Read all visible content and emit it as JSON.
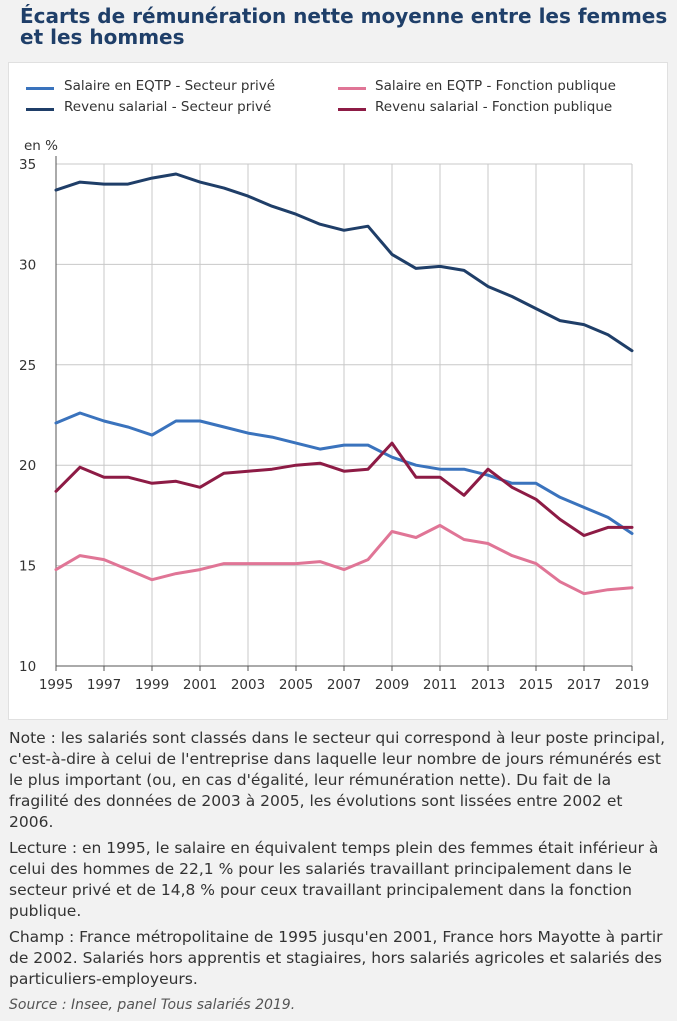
{
  "title": "Écarts de rémunération nette moyenne entre les femmes et les hommes",
  "colors": {
    "eqtp_prive": "#3a73bd",
    "eqtp_public": "#e07596",
    "revenu_prive": "#1f3e68",
    "revenu_public": "#8d1b45"
  },
  "chart_data": {
    "type": "line",
    "ylabel": "en %",
    "ylim": [
      10,
      35
    ],
    "yticks": [
      10,
      15,
      20,
      25,
      30,
      35
    ],
    "xlim": [
      1995,
      2019
    ],
    "xticks": [
      "1995",
      "1997",
      "1999",
      "2001",
      "2003",
      "2005",
      "2007",
      "2009",
      "2011",
      "2013",
      "2015",
      "2017",
      "2019"
    ],
    "grid": true,
    "legend_position": "top",
    "x": [
      1995,
      1996,
      1997,
      1998,
      1999,
      2000,
      2001,
      2002,
      2003,
      2004,
      2005,
      2006,
      2007,
      2008,
      2009,
      2010,
      2011,
      2012,
      2013,
      2014,
      2015,
      2016,
      2017,
      2018,
      2019
    ],
    "series": [
      {
        "name": "Salaire en EQTP - Secteur privé",
        "color": "#3a73bd",
        "values": [
          22.1,
          22.6,
          22.2,
          21.9,
          21.5,
          22.2,
          22.2,
          21.9,
          21.6,
          21.4,
          21.1,
          20.8,
          21.0,
          21.0,
          20.4,
          20.0,
          19.8,
          19.8,
          19.5,
          19.1,
          19.1,
          18.4,
          17.9,
          17.4,
          16.6
        ]
      },
      {
        "name": "Revenu salarial - Secteur privé",
        "color": "#1f3e68",
        "values": [
          33.7,
          34.1,
          34.0,
          34.0,
          34.3,
          34.5,
          34.1,
          33.8,
          33.4,
          32.9,
          32.5,
          32.0,
          31.7,
          31.9,
          30.5,
          29.8,
          29.9,
          29.7,
          28.9,
          28.4,
          27.8,
          27.2,
          27.0,
          26.5,
          25.7
        ]
      },
      {
        "name": "Salaire en EQTP - Fonction publique",
        "color": "#e07596",
        "values": [
          14.8,
          15.5,
          15.3,
          14.8,
          14.3,
          14.6,
          14.8,
          15.1,
          15.1,
          15.1,
          15.1,
          15.2,
          14.8,
          15.3,
          16.7,
          16.4,
          17.0,
          16.3,
          16.1,
          15.5,
          15.1,
          14.2,
          13.6,
          13.8,
          13.9
        ]
      },
      {
        "name": "Revenu salarial - Fonction publique",
        "color": "#8d1b45",
        "values": [
          18.7,
          19.9,
          19.4,
          19.4,
          19.1,
          19.2,
          18.9,
          19.6,
          19.7,
          19.8,
          20.0,
          20.1,
          19.7,
          19.8,
          21.1,
          19.4,
          19.4,
          18.5,
          19.8,
          18.9,
          18.3,
          17.3,
          16.5,
          16.9,
          16.9
        ]
      }
    ]
  },
  "notes": {
    "note": "Note : les salariés sont classés dans le secteur qui correspond à leur poste principal, c'est-à-dire à celui de l'entreprise dans laquelle leur nombre de jours rémunérés est le plus important (ou, en cas d'égalité, leur rémunération nette). Du fait de la fragilité des données de 2003 à 2005, les évolutions sont lissées entre 2002 et 2006.",
    "lecture": "Lecture : en 1995, le salaire en équivalent temps plein des femmes était inférieur à celui des hommes de 22,1 % pour les salariés travaillant principalement dans le secteur privé et de 14,8 % pour ceux travaillant principalement dans la fonction publique.",
    "champ": "Champ : France métropolitaine de 1995 jusqu'en 2001, France hors Mayotte à partir de 2002. Salariés hors apprentis et stagiaires, hors salariés agricoles et salariés des particuliers-employeurs.",
    "source": "Source : Insee, panel Tous salariés 2019."
  }
}
